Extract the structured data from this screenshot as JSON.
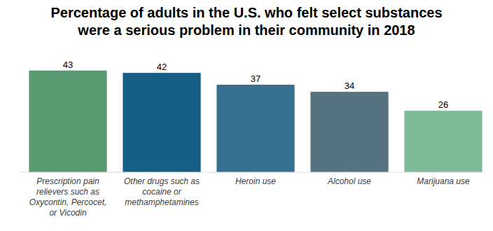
{
  "chart_data": {
    "type": "bar",
    "title": "Percentage of adults in the U.S. who felt select substances were a serious problem in their community in 2018",
    "categories": [
      "Prescription pain relievers such as Oxycontin, Percocet, or Vicodin",
      "Other drugs such as cocaine or methamphetamines",
      "Heroin use",
      "Alcohol use",
      "Marijuana use"
    ],
    "values": [
      43,
      42,
      37,
      34,
      26
    ],
    "colors": [
      "#5a9a72",
      "#165e85",
      "#37708f",
      "#56737f",
      "#7fba98"
    ],
    "ylim": [
      0,
      45
    ],
    "data_labels": true,
    "tick_labels": "x",
    "grid": false
  }
}
